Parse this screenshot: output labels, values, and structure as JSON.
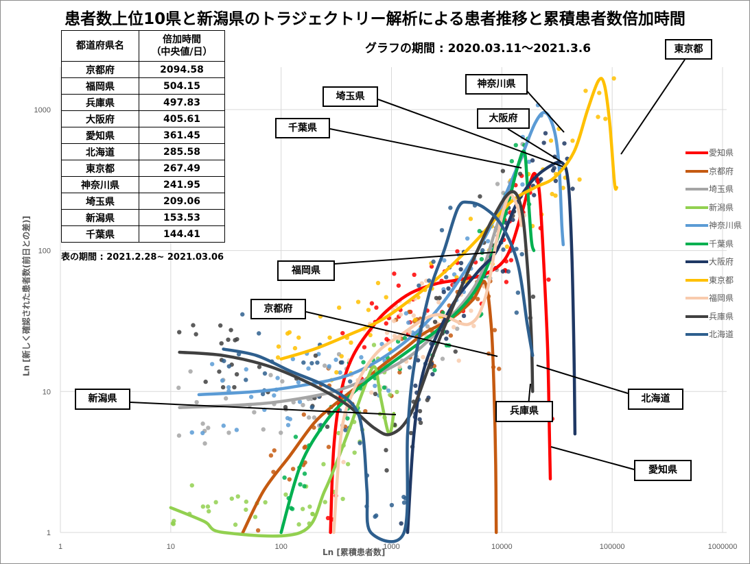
{
  "title": "患者数上位10県と新潟県のトラジェクトリー解析による患者推移と累積患者数倍加時間",
  "graph_period": "グラフの期間 : 2020.03.11～2021.3.6",
  "table_period": "表の期間 : 2021.2.28~ 2021.03.06",
  "table": {
    "header_pref": "都道府県名",
    "header_doubling_line1": "倍加時間",
    "header_doubling_line2": "（中央値/日）",
    "rows": [
      {
        "pref": "京都府",
        "value": "2094.58"
      },
      {
        "pref": "福岡県",
        "value": "504.15"
      },
      {
        "pref": "兵庫県",
        "value": "497.83"
      },
      {
        "pref": "大阪府",
        "value": "405.61"
      },
      {
        "pref": "愛知県",
        "value": "361.45"
      },
      {
        "pref": "北海道",
        "value": "285.58"
      },
      {
        "pref": "東京都",
        "value": "267.49"
      },
      {
        "pref": "神奈川県",
        "value": "241.95"
      },
      {
        "pref": "埼玉県",
        "value": "209.06"
      },
      {
        "pref": "新潟県",
        "value": "153.53"
      },
      {
        "pref": "千葉県",
        "value": "144.41"
      }
    ]
  },
  "callouts": {
    "tokyo": "東京都",
    "kanagawa": "神奈川県",
    "saitama": "埼玉県",
    "osaka": "大阪府",
    "chiba": "千葉県",
    "fukuoka": "福岡県",
    "kyoto": "京都府",
    "niigata": "新潟県",
    "hyogo": "兵庫県",
    "hokkaido": "北海道",
    "aichi": "愛知県"
  },
  "chart_data": {
    "type": "scatter",
    "xscale": "log",
    "yscale": "log",
    "xlim": [
      1,
      1000000
    ],
    "ylim": [
      1,
      2000
    ],
    "xlabel": "Ln [累積患者数]",
    "ylabel": "Ln [新しく確認された患者数(前日との差)]",
    "x_ticks": [
      "1",
      "10",
      "100",
      "1000",
      "10000",
      "100000",
      "1000000"
    ],
    "y_ticks": [
      "1",
      "10",
      "100",
      "1000"
    ],
    "grid": true,
    "legend_position": "right",
    "series": [
      {
        "name": "愛知県",
        "color": "#ff0000",
        "trend": [
          [
            280,
            1
          ],
          [
            300,
            4
          ],
          [
            350,
            10
          ],
          [
            450,
            18
          ],
          [
            700,
            30
          ],
          [
            1000,
            40
          ],
          [
            1500,
            50
          ],
          [
            2500,
            58
          ],
          [
            4000,
            62
          ],
          [
            7000,
            68
          ],
          [
            11000,
            90
          ],
          [
            15000,
            180
          ],
          [
            18000,
            300
          ],
          [
            20000,
            350
          ],
          [
            22000,
            250
          ],
          [
            24000,
            80
          ],
          [
            26000,
            20
          ],
          [
            27000,
            5
          ],
          [
            27500,
            2.4
          ]
        ]
      },
      {
        "name": "京都府",
        "color": "#c55a11",
        "trend": [
          [
            45,
            1
          ],
          [
            70,
            2
          ],
          [
            120,
            3.5
          ],
          [
            200,
            6
          ],
          [
            300,
            8
          ],
          [
            500,
            11
          ],
          [
            800,
            15
          ],
          [
            1300,
            20
          ],
          [
            2000,
            26
          ],
          [
            3500,
            33
          ],
          [
            5500,
            45
          ],
          [
            7000,
            60
          ],
          [
            8000,
            30
          ],
          [
            8500,
            10
          ],
          [
            8800,
            3
          ],
          [
            8900,
            1
          ]
        ]
      },
      {
        "name": "埼玉県",
        "color": "#a5a5a5",
        "trend": [
          [
            12,
            7.7
          ],
          [
            40,
            8
          ],
          [
            100,
            8.5
          ],
          [
            300,
            10
          ],
          [
            700,
            13
          ],
          [
            1500,
            18
          ],
          [
            3000,
            30
          ],
          [
            6000,
            60
          ],
          [
            9000,
            150
          ],
          [
            12000,
            300
          ],
          [
            16000,
            500
          ]
        ]
      },
      {
        "name": "新潟県",
        "color": "#92d050",
        "trend": [
          [
            10,
            1.5
          ],
          [
            20,
            1.2
          ],
          [
            30,
            1
          ],
          [
            150,
            1
          ],
          [
            250,
            2
          ],
          [
            400,
            5
          ],
          [
            550,
            10
          ],
          [
            700,
            15
          ],
          [
            800,
            9
          ],
          [
            950,
            5
          ],
          [
            1050,
            7
          ]
        ]
      },
      {
        "name": "神奈川県",
        "color": "#5b9bd5",
        "trend": [
          [
            18,
            9.5
          ],
          [
            60,
            10
          ],
          [
            150,
            11
          ],
          [
            400,
            13
          ],
          [
            900,
            18
          ],
          [
            2000,
            30
          ],
          [
            4000,
            60
          ],
          [
            8000,
            150
          ],
          [
            14000,
            400
          ],
          [
            20000,
            800
          ],
          [
            25000,
            950
          ],
          [
            30000,
            700
          ],
          [
            33000,
            400
          ],
          [
            35000,
            150
          ],
          [
            36000,
            110
          ]
        ]
      },
      {
        "name": "千葉県",
        "color": "#00b050",
        "trend": [
          [
            100,
            1
          ],
          [
            150,
            3
          ],
          [
            250,
            6
          ],
          [
            400,
            9
          ],
          [
            700,
            13
          ],
          [
            1500,
            20
          ],
          [
            3000,
            30
          ],
          [
            6000,
            55
          ],
          [
            10000,
            150
          ],
          [
            14000,
            400
          ],
          [
            16000,
            500
          ],
          [
            17000,
            300
          ],
          [
            18500,
            120
          ],
          [
            19500,
            100
          ]
        ]
      },
      {
        "name": "大阪府",
        "color": "#1f3864",
        "trend": [
          [
            1400,
            1
          ],
          [
            1600,
            5
          ],
          [
            2000,
            15
          ],
          [
            3500,
            40
          ],
          [
            6000,
            70
          ],
          [
            9000,
            100
          ],
          [
            13000,
            200
          ],
          [
            18000,
            300
          ],
          [
            25000,
            380
          ],
          [
            35000,
            420
          ],
          [
            40000,
            300
          ],
          [
            43000,
            100
          ],
          [
            45000,
            20
          ],
          [
            46000,
            5
          ]
        ]
      },
      {
        "name": "東京都",
        "color": "#ffc000",
        "trend": [
          [
            100,
            17
          ],
          [
            200,
            20
          ],
          [
            400,
            25
          ],
          [
            800,
            32
          ],
          [
            1500,
            45
          ],
          [
            3000,
            70
          ],
          [
            6000,
            120
          ],
          [
            12000,
            220
          ],
          [
            20000,
            280
          ],
          [
            30000,
            330
          ],
          [
            45000,
            500
          ],
          [
            60000,
            1000
          ],
          [
            75000,
            1600
          ],
          [
            85000,
            1500
          ],
          [
            95000,
            800
          ],
          [
            105000,
            300
          ],
          [
            110000,
            280
          ]
        ]
      },
      {
        "name": "福岡県",
        "color": "#f8cbad",
        "trend": [
          [
            300,
            1
          ],
          [
            350,
            5
          ],
          [
            450,
            10
          ],
          [
            700,
            18
          ],
          [
            1200,
            25
          ],
          [
            2500,
            35
          ],
          [
            5000,
            30
          ],
          [
            7000,
            45
          ],
          [
            9000,
            120
          ],
          [
            10500,
            200
          ],
          [
            12000,
            250
          ],
          [
            14000,
            200
          ],
          [
            15000,
            150
          ]
        ]
      },
      {
        "name": "兵庫県",
        "color": "#404040",
        "trend": [
          [
            12,
            19
          ],
          [
            30,
            18
          ],
          [
            80,
            15
          ],
          [
            200,
            11
          ],
          [
            400,
            8
          ],
          [
            700,
            5.5
          ],
          [
            1000,
            5
          ],
          [
            1500,
            7
          ],
          [
            2500,
            20
          ],
          [
            4500,
            60
          ],
          [
            8000,
            160
          ],
          [
            12000,
            260
          ],
          [
            15000,
            200
          ],
          [
            17000,
            80
          ],
          [
            18500,
            25
          ],
          [
            19000,
            10
          ]
        ]
      },
      {
        "name": "北海道",
        "color": "#2e5f8e",
        "trend": [
          [
            30,
            20
          ],
          [
            60,
            18
          ],
          [
            120,
            14
          ],
          [
            250,
            11
          ],
          [
            450,
            8
          ],
          [
            550,
            5
          ],
          [
            600,
            2
          ],
          [
            650,
            1
          ],
          [
            1300,
            1
          ],
          [
            1400,
            5
          ],
          [
            1600,
            15
          ],
          [
            2200,
            50
          ],
          [
            3000,
            100
          ],
          [
            4000,
            200
          ],
          [
            5000,
            220
          ],
          [
            7000,
            200
          ],
          [
            10000,
            150
          ],
          [
            14000,
            80
          ],
          [
            17000,
            30
          ],
          [
            19000,
            18
          ]
        ]
      }
    ]
  }
}
